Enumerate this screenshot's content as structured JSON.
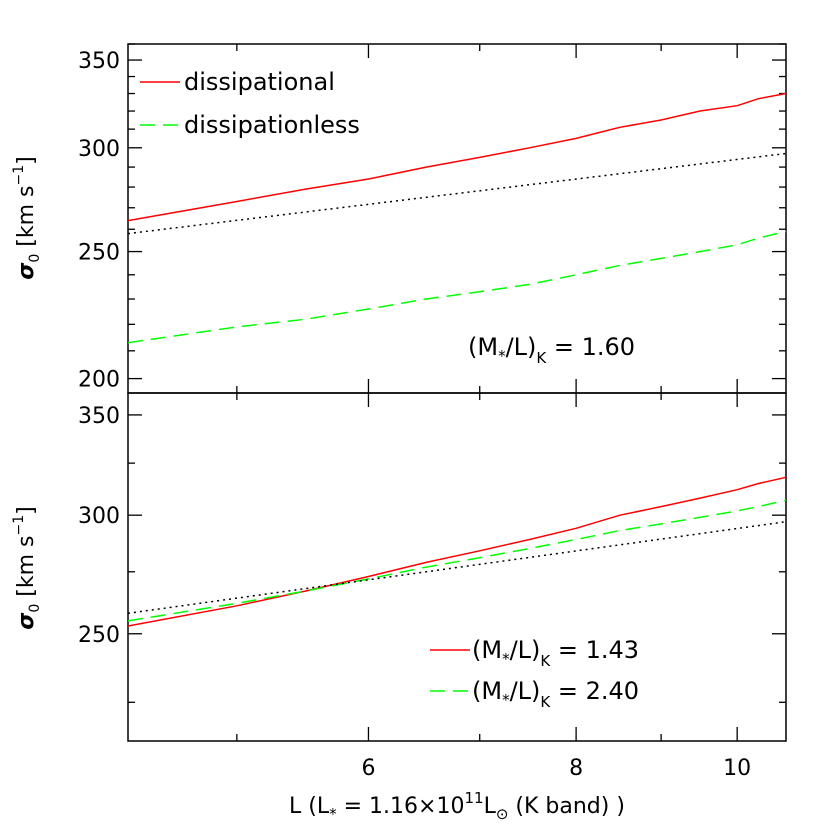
{
  "chart_data": [
    {
      "type": "line",
      "xscale": "log",
      "yscale": "log",
      "xlim": [
        4.3,
        10.7
      ],
      "ylim": [
        195,
        360
      ],
      "x_ticks": [
        "6",
        "8",
        "10"
      ],
      "y_ticks": [
        "200",
        "250",
        "300",
        "350"
      ],
      "ylabel": "σ0 [km s⁻¹]",
      "grid": false,
      "legend_position": "top-left",
      "annotation": "(M*/L)K = 1.60",
      "series": [
        {
          "name": "dissipational",
          "color": "#ff0000",
          "dash": "solid",
          "x": [
            4.3,
            5.0,
            5.5,
            6.0,
            6.5,
            7.0,
            7.5,
            8.0,
            8.5,
            9.0,
            9.5,
            10.0,
            10.3,
            10.7
          ],
          "y": [
            264,
            273,
            279,
            284,
            290,
            295,
            300,
            305,
            311,
            315,
            320,
            323,
            327,
            330
          ]
        },
        {
          "name": "dissipationless",
          "color": "#00ff00",
          "dash": "long-dash",
          "x": [
            4.3,
            5.0,
            5.5,
            6.0,
            6.5,
            7.0,
            7.5,
            8.0,
            8.5,
            9.0,
            9.5,
            10.0,
            10.3,
            10.7
          ],
          "y": [
            213,
            219,
            222,
            226,
            230,
            233,
            236,
            240,
            244,
            247,
            250,
            253,
            256,
            259
          ]
        },
        {
          "color": "#000000",
          "dash": "dotted",
          "x": [
            4.3,
            10.7
          ],
          "y": [
            258,
            297
          ]
        }
      ]
    },
    {
      "type": "line",
      "xscale": "log",
      "yscale": "log",
      "xlim": [
        4.3,
        10.7
      ],
      "ylim": [
        212,
        362
      ],
      "x_ticks": [
        "6",
        "8",
        "10"
      ],
      "y_ticks": [
        "250",
        "300",
        "350"
      ],
      "xlabel": "L (L* = 1.16×10¹¹L⊙ (K band) )",
      "ylabel": "σ0 [km s⁻¹]",
      "grid": false,
      "legend_position": "bottom-right",
      "series": [
        {
          "name": "(M*/L)K = 1.43",
          "color": "#ff0000",
          "dash": "solid",
          "x": [
            4.3,
            5.0,
            5.5,
            6.0,
            6.5,
            7.0,
            7.5,
            8.0,
            8.5,
            9.0,
            9.5,
            10.0,
            10.3,
            10.7
          ],
          "y": [
            253,
            261,
            267,
            273,
            279,
            284,
            289,
            294,
            300,
            304,
            308,
            312,
            315,
            318
          ]
        },
        {
          "name": "(M*/L)K = 2.40",
          "color": "#00ff00",
          "dash": "long-dash",
          "x": [
            4.3,
            5.0,
            5.5,
            6.0,
            6.5,
            7.0,
            7.5,
            8.0,
            8.5,
            9.0,
            9.5,
            10.0,
            10.3,
            10.7
          ],
          "y": [
            255,
            262,
            267,
            272,
            277,
            281,
            285,
            289,
            293,
            296,
            299,
            302,
            304,
            307
          ]
        },
        {
          "color": "#000000",
          "dash": "dotted",
          "x": [
            4.3,
            10.7
          ],
          "y": [
            258,
            297
          ]
        }
      ]
    }
  ]
}
